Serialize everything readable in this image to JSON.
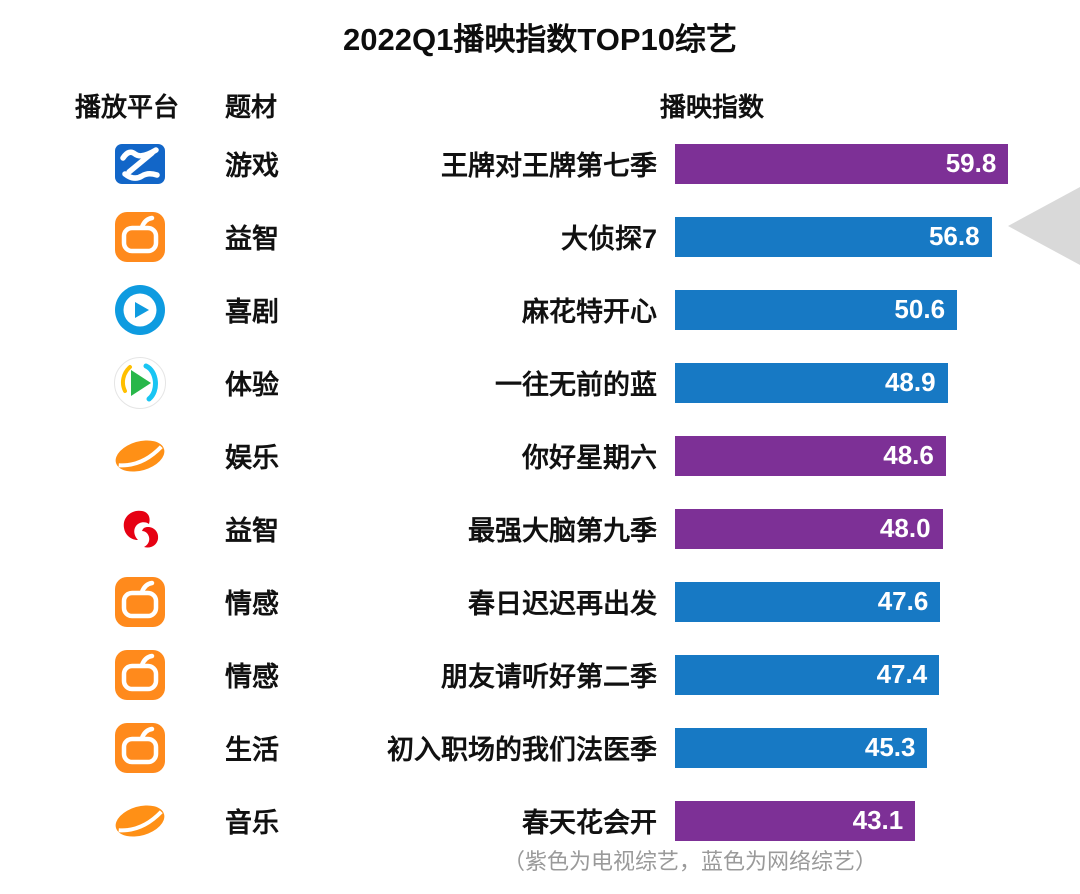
{
  "title": "2022Q1播映指数TOP10综艺",
  "headers": {
    "platform": "播放平台",
    "genre": "题材",
    "index": "播映指数"
  },
  "footnote": "（紫色为电视综艺，蓝色为网络综艺）",
  "colors": {
    "tv": "#7d3096",
    "web": "#1779c4"
  },
  "chart_data": {
    "type": "bar",
    "orientation": "horizontal",
    "title": "2022Q1播映指数TOP10综艺",
    "value_label": "播映指数",
    "scale_max": 61,
    "rows": [
      {
        "icon": "zhejiang-tv-icon",
        "genre": "游戏",
        "show": "王牌对王牌第七季",
        "value": 59.8,
        "label": "59.8",
        "category": "tv"
      },
      {
        "icon": "mango-tv-icon",
        "genre": "益智",
        "show": "大侦探7",
        "value": 56.8,
        "label": "56.8",
        "category": "web"
      },
      {
        "icon": "youku-icon",
        "genre": "喜剧",
        "show": "麻花特开心",
        "value": 50.6,
        "label": "50.6",
        "category": "web"
      },
      {
        "icon": "tencent-video-icon",
        "genre": "体验",
        "show": "一往无前的蓝",
        "value": 48.9,
        "label": "48.9",
        "category": "web"
      },
      {
        "icon": "hunan-tv-icon",
        "genre": "娱乐",
        "show": "你好星期六",
        "value": 48.6,
        "label": "48.6",
        "category": "tv"
      },
      {
        "icon": "jiangsu-tv-icon",
        "genre": "益智",
        "show": "最强大脑第九季",
        "value": 48.0,
        "label": "48.0",
        "category": "tv"
      },
      {
        "icon": "mango-tv-icon",
        "genre": "情感",
        "show": "春日迟迟再出发",
        "value": 47.6,
        "label": "47.6",
        "category": "web"
      },
      {
        "icon": "mango-tv-icon",
        "genre": "情感",
        "show": "朋友请听好第二季",
        "value": 47.4,
        "label": "47.4",
        "category": "web"
      },
      {
        "icon": "mango-tv-icon",
        "genre": "生活",
        "show": "初入职场的我们法医季",
        "value": 45.3,
        "label": "45.3",
        "category": "web"
      },
      {
        "icon": "hunan-tv-icon",
        "genre": "音乐",
        "show": "春天花会开",
        "value": 43.1,
        "label": "43.1",
        "category": "tv"
      }
    ]
  }
}
